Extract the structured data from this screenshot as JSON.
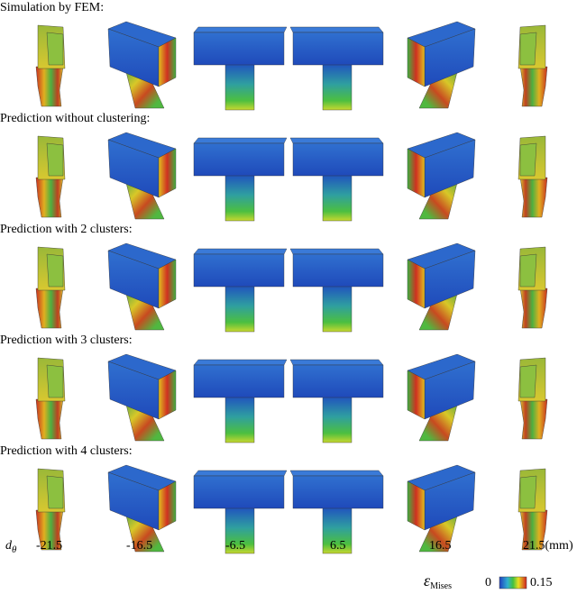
{
  "rows": [
    {
      "title": "Simulation by FEM:"
    },
    {
      "title": "Prediction without clustering:"
    },
    {
      "title": "Prediction with 2 clusters:"
    },
    {
      "title": "Prediction with 3 clusters:"
    },
    {
      "title": "Prediction with 4 clusters:"
    }
  ],
  "axis": {
    "symbol": "d",
    "subscript": "θ",
    "values": [
      -21.5,
      -16.5,
      -6.5,
      6.5,
      16.5,
      21.5
    ],
    "unit": "(mm)"
  },
  "colorbar": {
    "symbol": "ε",
    "subscript": "Mises",
    "min": 0,
    "max": 0.15
  }
}
